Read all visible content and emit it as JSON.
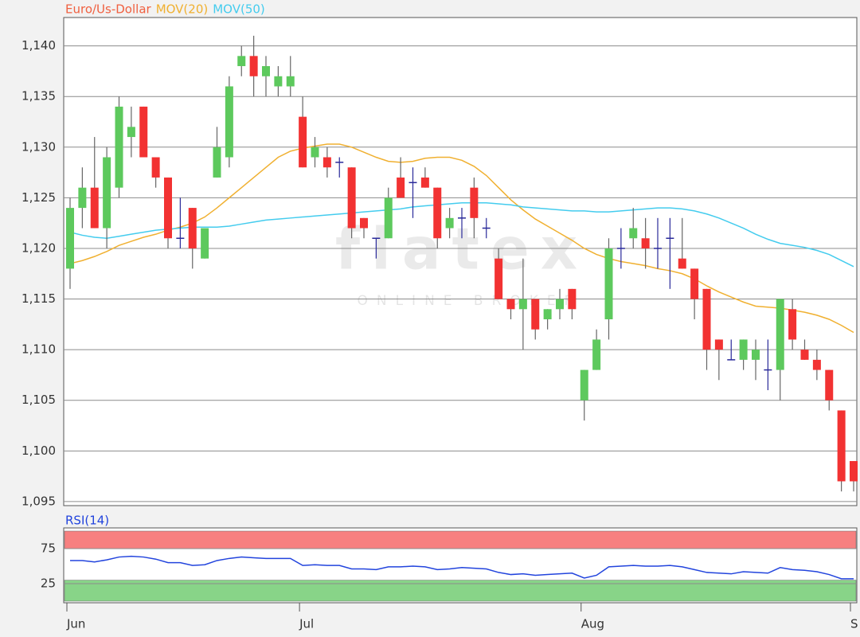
{
  "chart_data": [
    {
      "type": "candlestick",
      "title": "Euro/Us-Dollar",
      "title_color": "#f06040",
      "categories": [
        "Jun",
        null,
        null,
        null,
        null,
        null,
        null,
        null,
        null,
        null,
        null,
        null,
        null,
        null,
        null,
        null,
        null,
        null,
        null,
        "Jul",
        null,
        null,
        null,
        null,
        null,
        null,
        null,
        null,
        null,
        null,
        null,
        null,
        null,
        null,
        null,
        null,
        null,
        null,
        null,
        null,
        null,
        null,
        "Aug",
        null,
        null,
        null,
        null,
        null,
        null,
        null,
        null,
        null,
        null,
        null,
        null,
        null,
        null,
        null,
        null,
        null,
        null,
        null,
        null,
        null,
        "S"
      ],
      "open": [
        1.118,
        1.124,
        1.126,
        1.122,
        1.126,
        1.131,
        1.134,
        1.129,
        1.127,
        1.121,
        1.124,
        1.119,
        1.127,
        1.129,
        1.138,
        1.139,
        1.137,
        1.136,
        1.136,
        1.133,
        1.129,
        1.129,
        1.1285,
        1.128,
        1.123,
        1.121,
        1.121,
        1.127,
        1.1265,
        1.127,
        1.126,
        1.122,
        1.123,
        1.126,
        1.122,
        1.119,
        1.115,
        1.114,
        1.115,
        1.113,
        1.114,
        1.116,
        1.105,
        1.108,
        1.113,
        1.12,
        1.121,
        1.121,
        1.12,
        1.121,
        1.119,
        1.118,
        1.116,
        1.111,
        1.109,
        1.109,
        1.109,
        1.108,
        1.108,
        1.114,
        1.11,
        1.109,
        1.108,
        1.104,
        1.099
      ],
      "high": [
        1.125,
        1.128,
        1.131,
        1.13,
        1.135,
        1.134,
        1.134,
        1.129,
        1.127,
        1.125,
        1.124,
        1.122,
        1.132,
        1.137,
        1.14,
        1.141,
        1.139,
        1.138,
        1.139,
        1.135,
        1.131,
        1.13,
        1.129,
        1.128,
        1.123,
        1.121,
        1.126,
        1.129,
        1.128,
        1.128,
        1.126,
        1.124,
        1.124,
        1.127,
        1.123,
        1.12,
        1.115,
        1.119,
        1.115,
        1.114,
        1.116,
        1.116,
        1.108,
        1.112,
        1.121,
        1.122,
        1.124,
        1.123,
        1.123,
        1.123,
        1.123,
        1.118,
        1.116,
        1.111,
        1.111,
        1.111,
        1.111,
        1.111,
        1.115,
        1.115,
        1.111,
        1.11,
        1.108,
        1.104,
        1.099
      ],
      "low": [
        1.116,
        1.122,
        1.122,
        1.12,
        1.125,
        1.129,
        1.129,
        1.126,
        1.12,
        1.12,
        1.118,
        1.119,
        1.127,
        1.128,
        1.137,
        1.135,
        1.135,
        1.135,
        1.135,
        1.128,
        1.128,
        1.127,
        1.127,
        1.121,
        1.121,
        1.119,
        1.121,
        1.125,
        1.123,
        1.126,
        1.12,
        1.121,
        1.121,
        1.121,
        1.121,
        1.115,
        1.113,
        1.11,
        1.111,
        1.112,
        1.113,
        1.113,
        1.103,
        1.108,
        1.111,
        1.118,
        1.12,
        1.118,
        1.118,
        1.116,
        1.118,
        1.113,
        1.108,
        1.107,
        1.109,
        1.108,
        1.107,
        1.106,
        1.105,
        1.11,
        1.109,
        1.107,
        1.104,
        1.096,
        1.096
      ],
      "close": [
        1.124,
        1.126,
        1.122,
        1.129,
        1.134,
        1.132,
        1.129,
        1.127,
        1.121,
        1.121,
        1.12,
        1.122,
        1.13,
        1.136,
        1.139,
        1.137,
        1.138,
        1.137,
        1.137,
        1.128,
        1.13,
        1.128,
        1.1285,
        1.122,
        1.122,
        1.121,
        1.125,
        1.125,
        1.1265,
        1.126,
        1.121,
        1.123,
        1.123,
        1.123,
        1.122,
        1.115,
        1.114,
        1.115,
        1.112,
        1.114,
        1.115,
        1.114,
        1.108,
        1.111,
        1.12,
        1.12,
        1.122,
        1.12,
        1.12,
        1.121,
        1.118,
        1.115,
        1.11,
        1.11,
        1.109,
        1.111,
        1.11,
        1.108,
        1.115,
        1.111,
        1.109,
        1.108,
        1.105,
        1.097,
        1.097
      ],
      "colors": {
        "up": "#5dc95d",
        "down": "#f23232",
        "flat": "#2a2a9a"
      },
      "series": [
        {
          "name": "MOV(20)",
          "color": "#f0b030",
          "values": [
            1.1185,
            1.1188,
            1.1192,
            1.1197,
            1.1203,
            1.1207,
            1.1211,
            1.1214,
            1.1218,
            1.1221,
            1.1225,
            1.1231,
            1.124,
            1.125,
            1.126,
            1.127,
            1.128,
            1.129,
            1.1296,
            1.1299,
            1.1301,
            1.1303,
            1.1303,
            1.13,
            1.1295,
            1.129,
            1.1286,
            1.1285,
            1.1286,
            1.1289,
            1.129,
            1.129,
            1.1287,
            1.1281,
            1.1272,
            1.126,
            1.1248,
            1.1238,
            1.1229,
            1.1222,
            1.1215,
            1.1208,
            1.12,
            1.1194,
            1.119,
            1.1187,
            1.1185,
            1.1183,
            1.118,
            1.1178,
            1.1175,
            1.117,
            1.1163,
            1.1157,
            1.1152,
            1.1147,
            1.1143,
            1.1142,
            1.1141,
            1.1139,
            1.1137,
            1.1134,
            1.113,
            1.1124,
            1.1117
          ]
        },
        {
          "name": "MOV(50)",
          "color": "#44ccee",
          "values": [
            1.1216,
            1.1213,
            1.1211,
            1.121,
            1.1212,
            1.1214,
            1.1216,
            1.1218,
            1.1219,
            1.122,
            1.1221,
            1.1221,
            1.1221,
            1.1222,
            1.1224,
            1.1226,
            1.1228,
            1.1229,
            1.123,
            1.1231,
            1.1232,
            1.1233,
            1.1234,
            1.1235,
            1.1236,
            1.1237,
            1.1238,
            1.1239,
            1.1241,
            1.1242,
            1.1243,
            1.1244,
            1.1245,
            1.1245,
            1.1245,
            1.1244,
            1.1243,
            1.1241,
            1.124,
            1.1239,
            1.1238,
            1.1237,
            1.1237,
            1.1236,
            1.1236,
            1.1237,
            1.1238,
            1.1239,
            1.124,
            1.124,
            1.1239,
            1.1237,
            1.1234,
            1.123,
            1.1225,
            1.122,
            1.1214,
            1.1209,
            1.1205,
            1.1203,
            1.1201,
            1.1198,
            1.1194,
            1.1188,
            1.1182
          ]
        }
      ],
      "ylim": [
        1.0946,
        1.1428
      ],
      "yticks": [
        {
          "value": 1.095,
          "label": "1,095"
        },
        {
          "value": 1.1,
          "label": "1,100"
        },
        {
          "value": 1.105,
          "label": "1,105"
        },
        {
          "value": 1.11,
          "label": "1,110"
        },
        {
          "value": 1.115,
          "label": "1,115"
        },
        {
          "value": 1.12,
          "label": "1,120"
        },
        {
          "value": 1.125,
          "label": "1,125"
        },
        {
          "value": 1.13,
          "label": "1,130"
        },
        {
          "value": 1.135,
          "label": "1,135"
        },
        {
          "value": 1.14,
          "label": "1,140"
        }
      ],
      "grid": true,
      "watermark": {
        "brand": "flatex",
        "tagline": "ONLINE BROKER"
      }
    },
    {
      "type": "line",
      "series": [
        {
          "name": "RSI(14)",
          "color": "#2244dd",
          "values": [
            58,
            58,
            56,
            59,
            63,
            64,
            63,
            60,
            55,
            55,
            51,
            52,
            58,
            61,
            63,
            62,
            61,
            61,
            61,
            51,
            52,
            51,
            51,
            46,
            46,
            45,
            49,
            49,
            50,
            49,
            45,
            46,
            48,
            47,
            46,
            41,
            38,
            39,
            37,
            38,
            39,
            40,
            33,
            37,
            49,
            50,
            51,
            50,
            50,
            51,
            49,
            45,
            41,
            40,
            39,
            42,
            41,
            40,
            48,
            45,
            44,
            42,
            38,
            32,
            32
          ]
        }
      ],
      "ylim": [
        0,
        100
      ],
      "yticks": [
        25,
        75
      ],
      "grid": true,
      "bands": [
        {
          "range": [
            75,
            100
          ],
          "color": "#f78080"
        },
        {
          "range": [
            0,
            30
          ],
          "color": "#88d488"
        }
      ]
    }
  ]
}
